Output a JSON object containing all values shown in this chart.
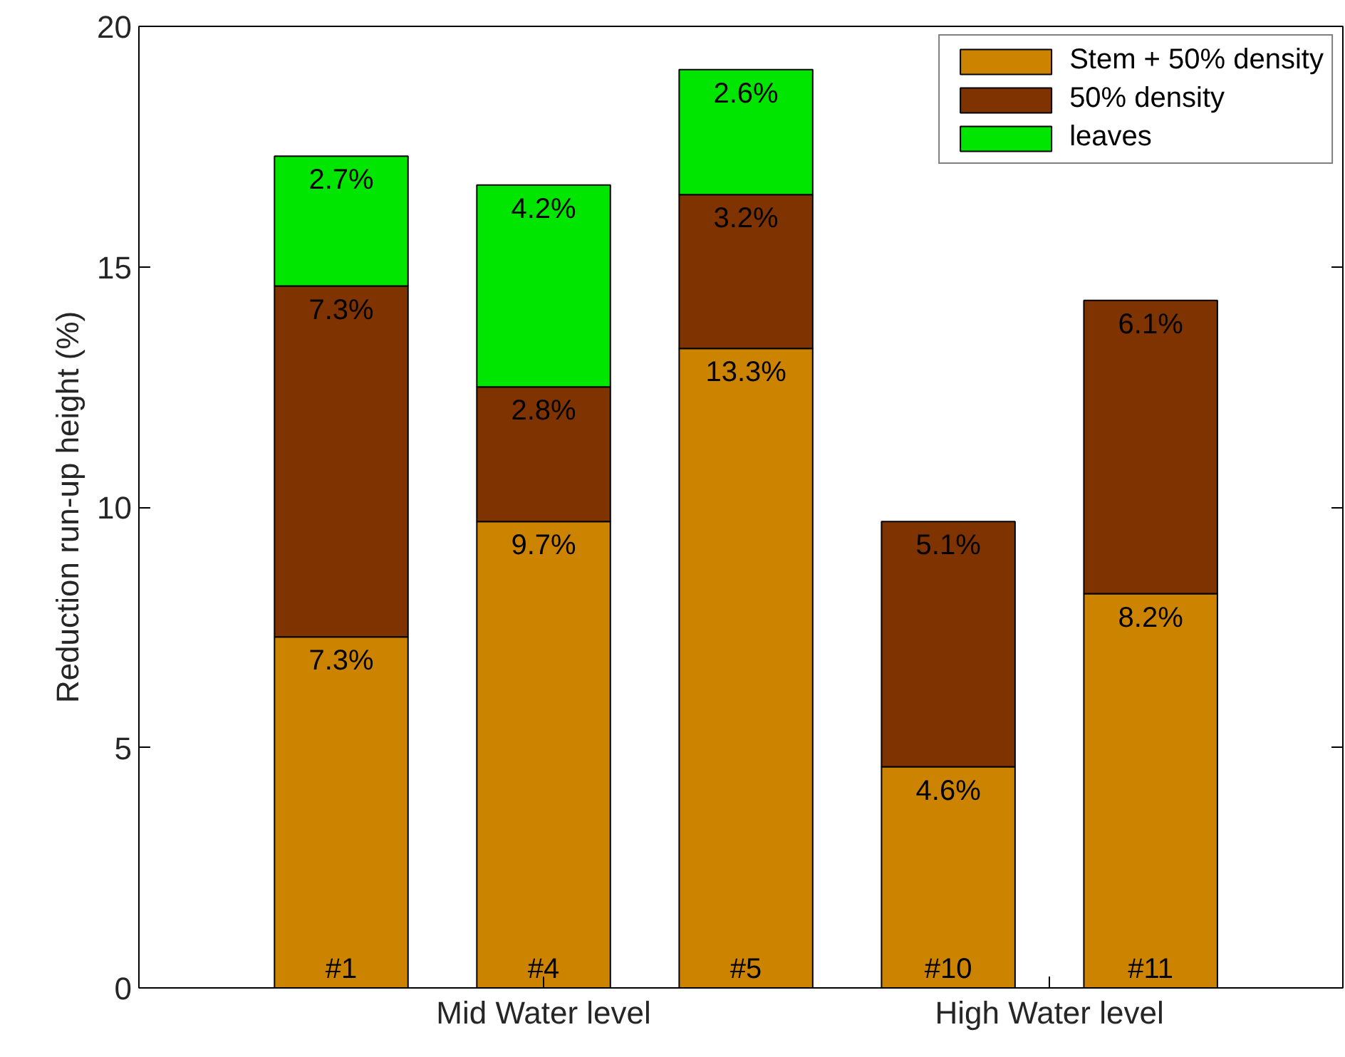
{
  "chart_data": {
    "type": "bar",
    "stacked": true,
    "ylabel": "Reduction run-up height (%)",
    "categories": [
      "#1",
      "#4",
      "#5",
      "#10",
      "#11"
    ],
    "ylim": [
      0,
      20
    ],
    "yticks": [
      0,
      5,
      10,
      15,
      20
    ],
    "series": [
      {
        "name": "Stem + 50% density",
        "color": "#cc8400",
        "values": [
          7.3,
          9.7,
          13.3,
          4.6,
          8.2
        ],
        "value_labels": [
          "7.3%",
          "9.7%",
          "13.3%",
          "4.6%",
          "8.2%"
        ]
      },
      {
        "name": "50% density",
        "color": "#7f3300",
        "values": [
          7.3,
          2.8,
          3.2,
          5.1,
          6.1
        ],
        "value_labels": [
          "7.3%",
          "2.8%",
          "3.2%",
          "5.1%",
          "6.1%"
        ]
      },
      {
        "name": "leaves",
        "color": "#00e600",
        "values": [
          2.7,
          4.2,
          2.6,
          null,
          null
        ],
        "value_labels": [
          "2.7%",
          "4.2%",
          "2.6%",
          null,
          null
        ]
      }
    ],
    "annotations": [
      "Mid Water level",
      "High Water level"
    ],
    "legend": "top right",
    "grid": false
  }
}
